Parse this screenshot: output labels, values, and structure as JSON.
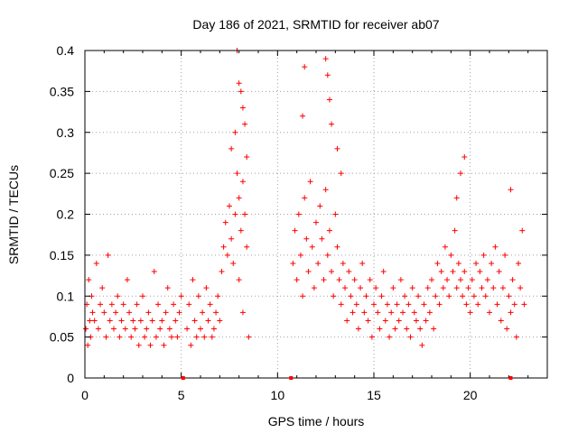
{
  "chart_data": {
    "type": "scatter",
    "title": "Day 186 of 2021, SRMTID for receiver ab07",
    "xlabel": "GPS time / hours",
    "ylabel": "SRMTID / TECUs",
    "xlim": [
      0,
      24
    ],
    "ylim": [
      0,
      0.4
    ],
    "xticks": [
      0,
      5,
      10,
      15,
      20
    ],
    "xtick_labels": [
      "0",
      "5",
      "10",
      "15",
      "20"
    ],
    "yticks": [
      0,
      0.05,
      0.1,
      0.15,
      0.2,
      0.25,
      0.3,
      0.35,
      0.4
    ],
    "ytick_labels": [
      "0",
      "0.05",
      "0.1",
      "0.15",
      "0.2",
      "0.25",
      "0.3",
      "0.35",
      "0.4"
    ],
    "grid": true,
    "marker": "plus",
    "color": "#ff0000",
    "series": [
      {
        "name": "SRMTID",
        "x": [
          0.05,
          0.1,
          0.15,
          0.2,
          0.25,
          0.3,
          0.35,
          0.4,
          0.5,
          0.6,
          0.7,
          0.8,
          0.9,
          1.0,
          1.1,
          1.2,
          1.3,
          1.4,
          1.5,
          1.6,
          1.7,
          1.8,
          1.9,
          2.0,
          2.1,
          2.2,
          2.3,
          2.4,
          2.5,
          2.6,
          2.7,
          2.8,
          2.9,
          3.0,
          3.1,
          3.2,
          3.3,
          3.4,
          3.5,
          3.6,
          3.7,
          3.8,
          3.9,
          4.0,
          4.1,
          4.2,
          4.3,
          4.4,
          4.5,
          4.6,
          4.7,
          4.8,
          4.9,
          5.0,
          5.3,
          5.4,
          5.5,
          5.6,
          5.7,
          5.8,
          5.9,
          6.0,
          6.1,
          6.2,
          6.3,
          6.4,
          6.5,
          6.6,
          6.7,
          6.8,
          6.9,
          7.0,
          7.1,
          7.2,
          7.3,
          7.4,
          7.5,
          7.6,
          7.7,
          7.8,
          7.9,
          8.0,
          8.1,
          8.2,
          8.3,
          8.4,
          8.5,
          7.6,
          7.8,
          8.0,
          8.2,
          8.4,
          7.9,
          8.1,
          8.3,
          8.0,
          8.2,
          10.8,
          10.9,
          11.0,
          11.1,
          11.2,
          11.3,
          11.4,
          11.5,
          11.6,
          11.7,
          11.8,
          11.9,
          12.0,
          12.1,
          12.2,
          12.3,
          12.4,
          12.5,
          12.6,
          12.7,
          12.8,
          12.9,
          13.0,
          13.1,
          13.2,
          13.3,
          13.4,
          13.5,
          13.6,
          13.7,
          13.8,
          13.9,
          14.0,
          14.1,
          14.2,
          14.3,
          14.4,
          14.5,
          14.6,
          14.7,
          14.8,
          14.9,
          15.0,
          15.1,
          15.2,
          15.3,
          15.4,
          15.5,
          15.6,
          15.7,
          15.8,
          15.9,
          16.0,
          16.1,
          16.2,
          16.3,
          16.4,
          16.5,
          16.6,
          16.7,
          16.8,
          16.9,
          17.0,
          17.1,
          17.2,
          17.3,
          17.4,
          17.5,
          17.6,
          17.7,
          17.8,
          17.9,
          18.0,
          18.1,
          18.2,
          18.3,
          18.4,
          18.5,
          18.6,
          18.7,
          18.8,
          18.9,
          19.0,
          19.1,
          19.2,
          19.3,
          19.4,
          19.5,
          19.6,
          19.7,
          19.8,
          19.9,
          20.0,
          20.1,
          20.2,
          20.3,
          20.4,
          20.5,
          20.6,
          20.7,
          20.8,
          20.9,
          21.0,
          21.1,
          21.2,
          21.3,
          21.4,
          21.5,
          21.6,
          21.7,
          21.8,
          21.9,
          22.0,
          22.1,
          22.2,
          22.3,
          22.4,
          22.5,
          22.6,
          22.7,
          22.8,
          11.3,
          11.4,
          12.5,
          12.6,
          12.7,
          12.8,
          13.1,
          13.3,
          19.3,
          19.5,
          19.7,
          22.1
        ],
        "y": [
          0.06,
          0.09,
          0.04,
          0.12,
          0.07,
          0.05,
          0.1,
          0.08,
          0.07,
          0.14,
          0.06,
          0.09,
          0.11,
          0.08,
          0.05,
          0.15,
          0.07,
          0.09,
          0.06,
          0.08,
          0.1,
          0.05,
          0.07,
          0.09,
          0.06,
          0.12,
          0.08,
          0.05,
          0.07,
          0.06,
          0.09,
          0.04,
          0.07,
          0.1,
          0.05,
          0.06,
          0.08,
          0.04,
          0.07,
          0.13,
          0.05,
          0.09,
          0.06,
          0.07,
          0.04,
          0.08,
          0.11,
          0.06,
          0.05,
          0.09,
          0.07,
          0.05,
          0.08,
          0.1,
          0.06,
          0.09,
          0.04,
          0.12,
          0.07,
          0.05,
          0.1,
          0.06,
          0.08,
          0.05,
          0.11,
          0.07,
          0.09,
          0.05,
          0.06,
          0.08,
          0.1,
          0.07,
          0.13,
          0.16,
          0.19,
          0.15,
          0.21,
          0.17,
          0.14,
          0.2,
          0.25,
          0.22,
          0.18,
          0.24,
          0.2,
          0.16,
          0.05,
          0.28,
          0.3,
          0.36,
          0.33,
          0.27,
          0.4,
          0.35,
          0.31,
          0.12,
          0.08,
          0.14,
          0.18,
          0.12,
          0.2,
          0.15,
          0.1,
          0.22,
          0.17,
          0.13,
          0.24,
          0.16,
          0.11,
          0.19,
          0.14,
          0.21,
          0.17,
          0.12,
          0.23,
          0.15,
          0.18,
          0.13,
          0.1,
          0.2,
          0.16,
          0.12,
          0.09,
          0.14,
          0.11,
          0.07,
          0.13,
          0.1,
          0.08,
          0.12,
          0.09,
          0.06,
          0.11,
          0.14,
          0.08,
          0.1,
          0.07,
          0.12,
          0.05,
          0.09,
          0.11,
          0.08,
          0.06,
          0.1,
          0.13,
          0.07,
          0.09,
          0.05,
          0.08,
          0.11,
          0.06,
          0.09,
          0.07,
          0.12,
          0.08,
          0.1,
          0.06,
          0.09,
          0.05,
          0.11,
          0.08,
          0.07,
          0.1,
          0.06,
          0.04,
          0.09,
          0.07,
          0.11,
          0.08,
          0.12,
          0.06,
          0.1,
          0.14,
          0.09,
          0.13,
          0.11,
          0.16,
          0.12,
          0.1,
          0.15,
          0.13,
          0.18,
          0.11,
          0.14,
          0.12,
          0.1,
          0.13,
          0.09,
          0.11,
          0.08,
          0.12,
          0.1,
          0.14,
          0.09,
          0.13,
          0.11,
          0.15,
          0.1,
          0.12,
          0.08,
          0.14,
          0.11,
          0.16,
          0.09,
          0.13,
          0.07,
          0.11,
          0.15,
          0.06,
          0.1,
          0.08,
          0.12,
          0.09,
          0.05,
          0.14,
          0.11,
          0.18,
          0.09,
          0.32,
          0.38,
          0.39,
          0.37,
          0.34,
          0.31,
          0.28,
          0.25,
          0.22,
          0.25,
          0.27,
          0.23
        ]
      }
    ],
    "baseline_markers_x": [
      5.1,
      10.7,
      22.1
    ]
  }
}
